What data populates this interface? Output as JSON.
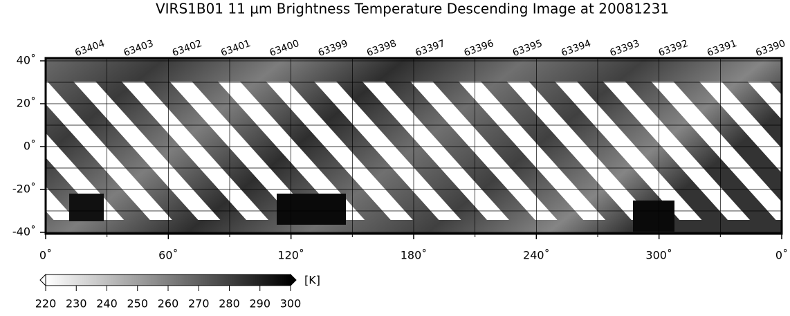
{
  "title": "VIRS1B01 11 µm Brightness Temperature Descending Image at 20081231",
  "orbits": [
    "63404",
    "63403",
    "63402",
    "63401",
    "63400",
    "63399",
    "63398",
    "63397",
    "63396",
    "63395",
    "63394",
    "63393",
    "63392",
    "63391",
    "63390"
  ],
  "lat_ticks": [
    {
      "value": 40,
      "label": "40˚"
    },
    {
      "value": 20,
      "label": "20˚"
    },
    {
      "value": 0,
      "label": "0˚"
    },
    {
      "value": -20,
      "label": "-20˚"
    },
    {
      "value": -40,
      "label": "-40˚"
    }
  ],
  "lat_minor_ticks": [
    30,
    10,
    -10,
    -30
  ],
  "lon_ticks": [
    {
      "value": 0,
      "label": "0˚"
    },
    {
      "value": 60,
      "label": "60˚"
    },
    {
      "value": 120,
      "label": "120˚"
    },
    {
      "value": 180,
      "label": "180˚"
    },
    {
      "value": 240,
      "label": "240˚"
    },
    {
      "value": 300,
      "label": "300˚"
    },
    {
      "value": 360,
      "label": "0˚"
    }
  ],
  "lon_minor_ticks": [
    30,
    90,
    150,
    210,
    270,
    330
  ],
  "colorbar": {
    "ticks": [
      220,
      230,
      240,
      250,
      260,
      270,
      280,
      290,
      300
    ],
    "unit": "[K]"
  }
}
